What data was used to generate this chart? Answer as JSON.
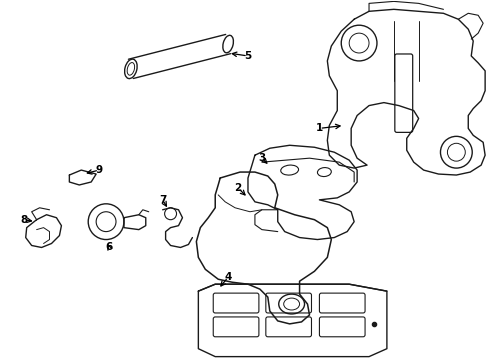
{
  "background_color": "#ffffff",
  "line_color": "#1a1a1a",
  "line_width": 1.0,
  "figure_width": 4.89,
  "figure_height": 3.6,
  "dpi": 100
}
